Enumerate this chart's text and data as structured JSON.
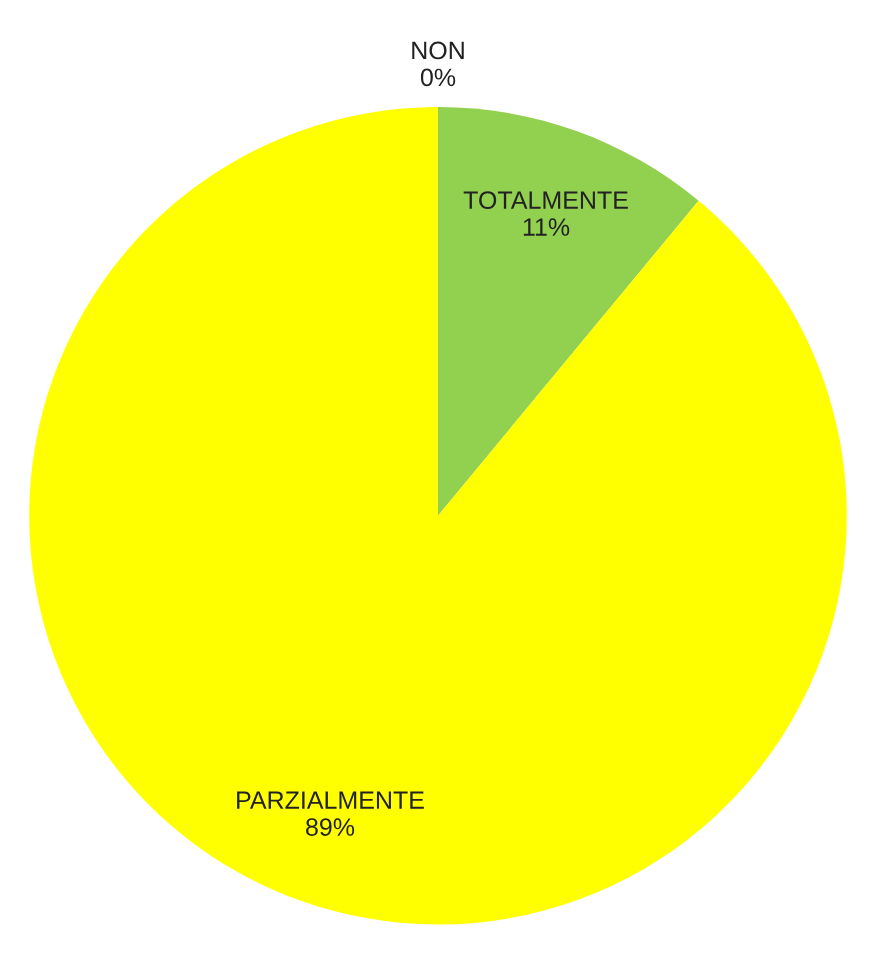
{
  "chart_data": {
    "type": "pie",
    "categories": [
      "TOTALMENTE",
      "PARZIALMENTE",
      "NON"
    ],
    "values": [
      11,
      89,
      0
    ],
    "value_labels": [
      "11%",
      "89%",
      "0%"
    ],
    "colors": [
      "#92d050",
      "#ffff00",
      "#ff0000"
    ],
    "legend": false
  }
}
